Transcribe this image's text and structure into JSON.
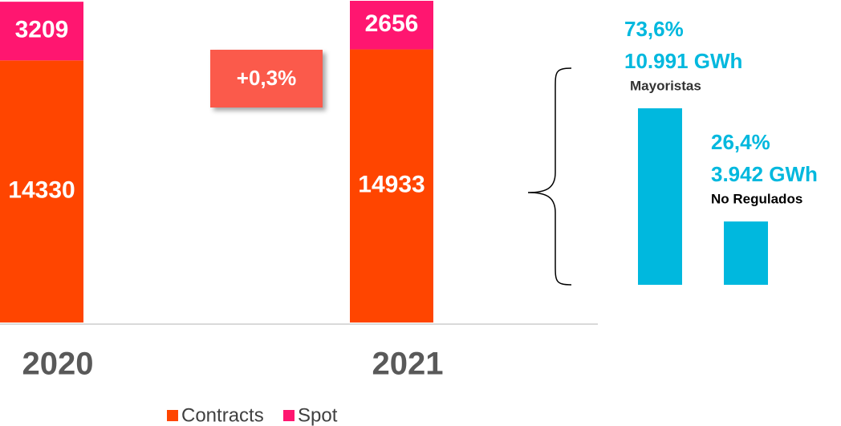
{
  "chart_data": [
    {
      "type": "stacked_bar",
      "categories": [
        "2020",
        "2021"
      ],
      "series": [
        {
          "name": "Contracts",
          "color": "#ff4500",
          "values": [
            14330,
            14933
          ]
        },
        {
          "name": "Spot",
          "color": "#ff1670",
          "values": [
            3209,
            2656
          ]
        }
      ],
      "annotation": "+0,3%"
    },
    {
      "type": "bar",
      "categories": [
        "Mayoristas",
        "No Regulados"
      ],
      "values": [
        73.6,
        26.4
      ],
      "value_labels": [
        "73,6%",
        "26,4%"
      ],
      "energy": {
        "values": [
          10991,
          3942
        ],
        "value_labels": [
          "10.991 GWh",
          "3.942 GWh"
        ]
      },
      "color": "#00b8de"
    }
  ]
}
